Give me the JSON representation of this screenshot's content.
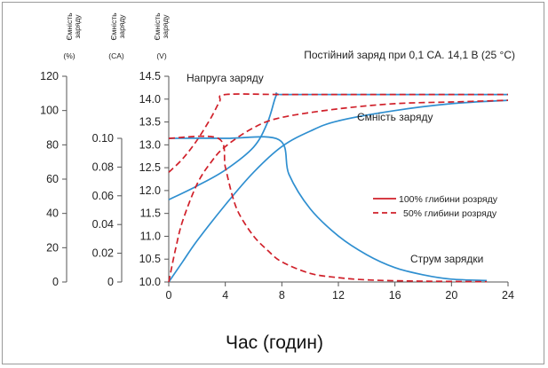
{
  "chart_data": {
    "type": "line",
    "title": "Постійний заряд при 0,1 CA. 14,1 В (25 °C)",
    "xlabel": "Час (годин)",
    "x_ticks": [
      "0",
      "4",
      "8",
      "12",
      "16",
      "20",
      "24"
    ],
    "xlim": [
      0,
      24
    ],
    "axes": [
      {
        "header": [
          "Ємність",
          "заряду",
          "(%)"
        ],
        "range": [
          0,
          120
        ],
        "ticks": [
          "0",
          "20",
          "40",
          "60",
          "80",
          "100",
          "120"
        ]
      },
      {
        "header": [
          "Ємність",
          "заряду",
          "(CA)"
        ],
        "range": [
          0,
          0.1
        ],
        "ticks": [
          "0",
          "0.02",
          "0.04",
          "0.06",
          "0.08",
          "0.10"
        ]
      },
      {
        "header": [
          "Ємність",
          "заряду",
          "(V)"
        ],
        "range": [
          10.0,
          14.5
        ],
        "ticks": [
          "10.0",
          "10.5",
          "11.0",
          "11.5",
          "12.0",
          "12.5",
          "13.0",
          "13.5",
          "14.0",
          "14.5"
        ]
      }
    ],
    "annotations": {
      "voltage": "Напруга заряду",
      "capacity": "Ємність заряду",
      "current": "Струм зарядки"
    },
    "legend": {
      "position": "right",
      "entries": [
        {
          "label": "100% глибини розряду",
          "style": "solid"
        },
        {
          "label": "50% глибини розряду",
          "style": "dashed"
        }
      ]
    },
    "colors": {
      "solid": "#2f8fd0",
      "dashed": "#d0202a"
    },
    "series": [
      {
        "quantity": "voltage",
        "depth": "100%",
        "style": "solid",
        "x": [
          0,
          2,
          4,
          6,
          7,
          7.6,
          8,
          12,
          16,
          20,
          24
        ],
        "y": [
          11.8,
          12.1,
          12.45,
          12.95,
          13.5,
          14.08,
          14.1,
          14.1,
          14.1,
          14.1,
          14.1
        ]
      },
      {
        "quantity": "voltage",
        "depth": "50%",
        "style": "dashed",
        "x": [
          0,
          1,
          2,
          3,
          3.6,
          4,
          8,
          12,
          16,
          20,
          24
        ],
        "y": [
          12.4,
          12.7,
          13.1,
          13.6,
          13.95,
          14.1,
          14.1,
          14.1,
          14.1,
          14.1,
          14.1
        ]
      },
      {
        "quantity": "capacity",
        "depth": "100%",
        "style": "solid",
        "x": [
          0,
          1,
          2,
          4,
          6,
          8,
          10,
          12,
          16,
          20,
          24
        ],
        "y": [
          0,
          12,
          24,
          45,
          64,
          79,
          88,
          94,
          100,
          104,
          106
        ]
      },
      {
        "quantity": "capacity",
        "depth": "50%",
        "style": "dashed",
        "x": [
          0,
          0.5,
          1,
          2,
          3,
          4,
          6,
          8,
          12,
          16,
          20,
          24
        ],
        "y": [
          0,
          20,
          36,
          57,
          70,
          79,
          90,
          96,
          101,
          104,
          105,
          106
        ]
      },
      {
        "quantity": "current",
        "depth": "100%",
        "style": "solid",
        "x": [
          0,
          4,
          7.8,
          8.5,
          10,
          12,
          14,
          16,
          18,
          20,
          22.5
        ],
        "y": [
          0.1,
          0.1,
          0.099,
          0.075,
          0.051,
          0.032,
          0.019,
          0.01,
          0.005,
          0.002,
          0.001
        ]
      },
      {
        "quantity": "current",
        "depth": "50%",
        "style": "dashed",
        "x": [
          0,
          3.5,
          4,
          4.5,
          5,
          6,
          7,
          8,
          10,
          12,
          14,
          17,
          22.5
        ],
        "y": [
          0.1,
          0.1,
          0.08,
          0.06,
          0.047,
          0.032,
          0.022,
          0.014,
          0.006,
          0.003,
          0.0015,
          0.0007,
          0.0002
        ]
      }
    ]
  }
}
